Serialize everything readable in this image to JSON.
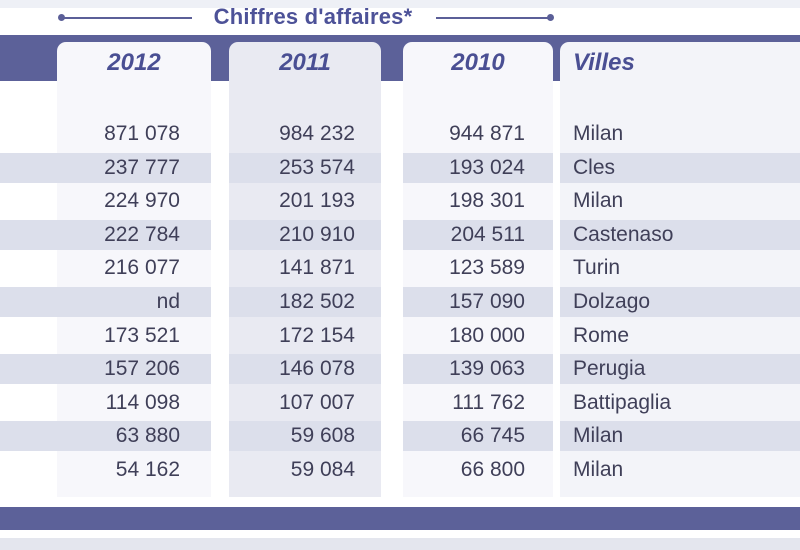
{
  "table": {
    "title": "Chiffres d'affaires*",
    "columns": [
      "2012",
      "2011",
      "2010",
      "Villes"
    ],
    "rows": [
      {
        "y2012": "871 078",
        "y2011": "984 232",
        "y2010": "944 871",
        "ville": "Milan"
      },
      {
        "y2012": "237 777",
        "y2011": "253 574",
        "y2010": "193 024",
        "ville": "Cles"
      },
      {
        "y2012": "224 970",
        "y2011": "201 193",
        "y2010": "198 301",
        "ville": "Milan"
      },
      {
        "y2012": "222 784",
        "y2011": "210 910",
        "y2010": "204 511",
        "ville": "Castenaso"
      },
      {
        "y2012": "216 077",
        "y2011": "141 871",
        "y2010": "123 589",
        "ville": "Turin"
      },
      {
        "y2012": "nd",
        "y2011": "182 502",
        "y2010": "157 090",
        "ville": "Dolzago"
      },
      {
        "y2012": "173 521",
        "y2011": "172 154",
        "y2010": "180 000",
        "ville": "Rome"
      },
      {
        "y2012": "157 206",
        "y2011": "146 078",
        "y2010": "139 063",
        "ville": "Perugia"
      },
      {
        "y2012": "114 098",
        "y2011": "107 007",
        "y2010": "111 762",
        "ville": "Battipaglia"
      },
      {
        "y2012": "63 880",
        "y2011": "59 608",
        "y2010": "66 745",
        "ville": "Milan"
      },
      {
        "y2012": "54 162",
        "y2011": "59 084",
        "y2010": "66 800",
        "ville": "Milan"
      }
    ]
  },
  "colors": {
    "band": "#5c6199",
    "heading": "#4a4f93",
    "stripe": "#dcdfeb"
  }
}
